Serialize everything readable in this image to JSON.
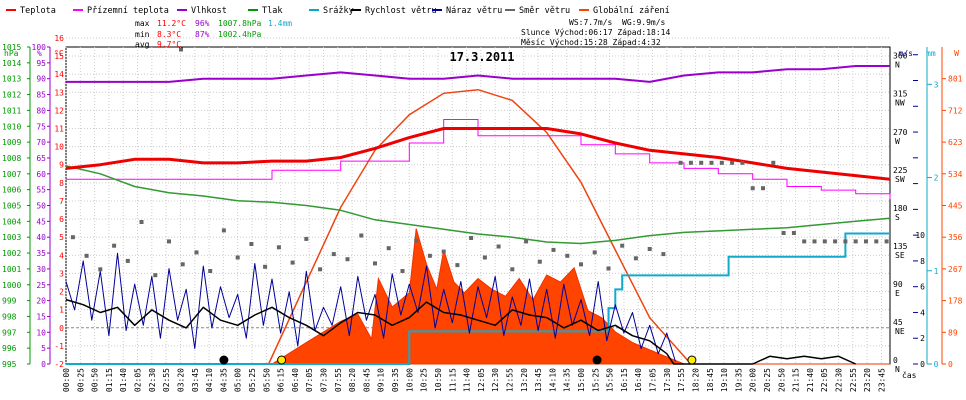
{
  "chart_data": {
    "type": "line",
    "title": "17.3.2011",
    "legend": [
      {
        "name": "Teplota",
        "color": "#ff0000"
      },
      {
        "name": "Přízemní teplota",
        "color": "#ff00ff"
      },
      {
        "name": "Vlhkost",
        "color": "#9900cc"
      },
      {
        "name": "Tlak",
        "color": "#009900"
      },
      {
        "name": "Srážky",
        "color": "#00aacc"
      },
      {
        "name": "Rychlost větru",
        "color": "#000000"
      },
      {
        "name": "Náraz větru",
        "color": "#000099"
      },
      {
        "name": "Směr větru",
        "color": "#666666"
      },
      {
        "name": "Globální záření",
        "color": "#ff4400"
      }
    ],
    "stats": {
      "max_label": "max",
      "max_temp": "11.2°C",
      "max_hum": "96%",
      "max_press": "1007.8hPa",
      "max_rain": "1.4mm",
      "min_label": "min",
      "min_temp": "8.3°C",
      "min_hum": "87%",
      "min_press": "1002.4hPa",
      "avg_label": "avg",
      "avg_temp": "9.7°C",
      "ws": "WS:7.7m/s",
      "wg": "WG:9.9m/s",
      "sun": "Slunce Východ:06:17   Západ:18:14",
      "moon": "Měsíc  Východ:15:28   Západ:4:32"
    },
    "axis_units": {
      "hpa": "hPa",
      "pct": "%",
      "degc": "°C",
      "ms": "m/s",
      "mm": "mm",
      "w": "W",
      "time": "čas"
    },
    "hpa_ticks": [
      995,
      996,
      997,
      998,
      999,
      1000,
      1001,
      1002,
      1003,
      1004,
      1005,
      1006,
      1007,
      1008,
      1009,
      1010,
      1011,
      1012,
      1013,
      1014,
      1015
    ],
    "pct_ticks": [
      0,
      5,
      10,
      15,
      20,
      25,
      30,
      35,
      40,
      45,
      50,
      55,
      60,
      65,
      70,
      75,
      80,
      85,
      90,
      95,
      100
    ],
    "temp_ticks": [
      -2,
      -1,
      0,
      1,
      2,
      3,
      4,
      5,
      6,
      7,
      8,
      9,
      10,
      11,
      12,
      13,
      14,
      15,
      16
    ],
    "dir_ticks": [
      {
        "v": 0,
        "deg": "0",
        "lbl": "N"
      },
      {
        "v": 45,
        "deg": "45",
        "lbl": "NE"
      },
      {
        "v": 90,
        "deg": "90",
        "lbl": "E"
      },
      {
        "v": 135,
        "deg": "135",
        "lbl": "SE"
      },
      {
        "v": 180,
        "deg": "180",
        "lbl": "S"
      },
      {
        "v": 225,
        "deg": "225",
        "lbl": "SW"
      },
      {
        "v": 270,
        "deg": "270",
        "lbl": "W"
      },
      {
        "v": 315,
        "deg": "315",
        "lbl": "NW"
      },
      {
        "v": 360,
        "deg": "360",
        "lbl": "N"
      }
    ],
    "ms_ticks": [
      0,
      2,
      4,
      6,
      8,
      10,
      12,
      14,
      16,
      18,
      20,
      22,
      24
    ],
    "ms_labels": [
      0,
      2,
      4,
      6,
      8,
      10
    ],
    "mm_ticks": [
      0,
      1,
      2,
      3
    ],
    "w_ticks": [
      0,
      89,
      178,
      267,
      356,
      445,
      534,
      623,
      712,
      801
    ],
    "x_labels": [
      "00:00",
      "00:25",
      "00:50",
      "01:15",
      "01:40",
      "02:05",
      "02:30",
      "02:55",
      "03:20",
      "03:45",
      "04:10",
      "04:35",
      "05:00",
      "05:25",
      "05:50",
      "06:15",
      "06:40",
      "07:05",
      "07:30",
      "07:55",
      "08:20",
      "08:45",
      "09:10",
      "09:35",
      "10:00",
      "10:25",
      "10:50",
      "11:15",
      "11:40",
      "12:05",
      "12:30",
      "12:55",
      "13:20",
      "13:45",
      "14:10",
      "14:35",
      "15:00",
      "15:25",
      "15:50",
      "16:15",
      "16:40",
      "17:05",
      "17:30",
      "17:55",
      "18:20",
      "18:45",
      "19:10",
      "19:35",
      "20:00",
      "20:25",
      "20:50",
      "21:15",
      "21:40",
      "22:05",
      "22:30",
      "22:55",
      "23:20",
      "23:45"
    ],
    "temperature": {
      "x_hours": [
        0,
        1,
        2,
        3,
        4,
        5,
        6,
        7,
        8,
        9,
        10,
        11,
        12,
        13,
        14,
        15,
        16,
        17,
        18,
        19,
        20,
        21,
        22,
        23,
        24
      ],
      "y": [
        8.8,
        9.0,
        9.3,
        9.3,
        9.1,
        9.1,
        9.2,
        9.2,
        9.4,
        9.9,
        10.5,
        11.0,
        11.0,
        11.0,
        11.0,
        10.7,
        10.2,
        9.8,
        9.6,
        9.4,
        9.1,
        8.8,
        8.6,
        8.4,
        8.2
      ]
    },
    "ground_temperature": {
      "x_hours": [
        0,
        1,
        2,
        3,
        4,
        5,
        6,
        7,
        8,
        9,
        10,
        11,
        12,
        13,
        14,
        15,
        16,
        17,
        18,
        19,
        20,
        21,
        22,
        23,
        24
      ],
      "y": [
        8.2,
        8.2,
        8.2,
        8.2,
        8.2,
        8.2,
        8.7,
        8.7,
        9.2,
        9.2,
        10.2,
        11.5,
        10.6,
        10.6,
        10.6,
        10.1,
        9.6,
        9.1,
        8.8,
        8.5,
        8.2,
        7.8,
        7.6,
        7.4,
        7.1
      ]
    },
    "humidity": {
      "x_hours": [
        0,
        1,
        2,
        3,
        4,
        5,
        6,
        7,
        8,
        9,
        10,
        11,
        12,
        13,
        14,
        15,
        16,
        17,
        18,
        19,
        20,
        21,
        22,
        23,
        24
      ],
      "y": [
        89,
        89,
        89,
        89,
        90,
        90,
        90,
        91,
        92,
        91,
        90,
        90,
        91,
        90,
        90,
        90,
        90,
        89,
        91,
        92,
        92,
        93,
        93,
        94,
        94
      ]
    },
    "pressure": {
      "x_hours": [
        0,
        1,
        2,
        3,
        4,
        5,
        6,
        7,
        8,
        9,
        10,
        11,
        12,
        13,
        14,
        15,
        16,
        17,
        18,
        19,
        20,
        21,
        22,
        23,
        24
      ],
      "y": [
        1007.5,
        1007.0,
        1006.2,
        1005.8,
        1005.6,
        1005.3,
        1005.2,
        1005.0,
        1004.7,
        1004.1,
        1003.8,
        1003.5,
        1003.2,
        1003.0,
        1002.7,
        1002.6,
        1002.8,
        1003.1,
        1003.3,
        1003.4,
        1003.5,
        1003.6,
        1003.8,
        1004.0,
        1004.2
      ]
    },
    "rain": {
      "x_hours": [
        0,
        8.5,
        9.8,
        10.0,
        15.6,
        15.8,
        16.0,
        16.2,
        19.1,
        19.3,
        22.5,
        22.7,
        24
      ],
      "y": [
        0,
        0,
        0,
        0.35,
        0.35,
        0.6,
        0.8,
        0.95,
        0.95,
        1.15,
        1.15,
        1.4,
        1.4
      ]
    },
    "wind_speed": {
      "x_hours": [
        0,
        0.5,
        1,
        1.5,
        2,
        2.5,
        3,
        3.5,
        4,
        4.5,
        5,
        5.5,
        6,
        6.5,
        7,
        7.5,
        8,
        8.5,
        9,
        9.5,
        10,
        10.5,
        11,
        11.5,
        12,
        12.5,
        13,
        13.5,
        14,
        14.5,
        15,
        15.5,
        16,
        16.5,
        17,
        17.5,
        17.7,
        20,
        20.5,
        21,
        21.5,
        22,
        22.5,
        23
      ],
      "y": [
        5.0,
        4.6,
        4.0,
        4.4,
        3.0,
        4.2,
        3.4,
        2.8,
        4.4,
        3.4,
        3.0,
        3.8,
        4.4,
        3.6,
        3.0,
        2.2,
        3.2,
        4.0,
        3.8,
        3.0,
        3.6,
        4.8,
        4.0,
        3.8,
        3.4,
        3.0,
        4.2,
        3.8,
        3.6,
        2.8,
        3.4,
        2.6,
        3.0,
        2.2,
        1.8,
        0.8,
        0.0,
        0.0,
        0.6,
        0.4,
        0.6,
        0.4,
        0.6,
        0.0
      ]
    },
    "wind_gust": {
      "x_hours": [
        0,
        0.25,
        0.5,
        0.75,
        1,
        1.25,
        1.5,
        1.75,
        2,
        2.25,
        2.5,
        2.75,
        3,
        3.25,
        3.5,
        3.75,
        4,
        4.25,
        4.5,
        4.75,
        5,
        5.25,
        5.5,
        5.75,
        6,
        6.25,
        6.5,
        6.75,
        7,
        7.25,
        7.5,
        7.75,
        8,
        8.25,
        8.5,
        8.75,
        9,
        9.25,
        9.5,
        9.75,
        10,
        10.25,
        10.5,
        10.75,
        11,
        11.25,
        11.5,
        11.75,
        12,
        12.25,
        12.5,
        12.75,
        13,
        13.25,
        13.5,
        13.75,
        14,
        14.25,
        14.5,
        14.75,
        15,
        15.25,
        15.5,
        15.75,
        16,
        16.25,
        16.5,
        16.75,
        17,
        17.25,
        17.5,
        17.75
      ],
      "y": [
        6.4,
        4.2,
        8.0,
        3.4,
        7.2,
        2.2,
        8.6,
        2.6,
        6.2,
        3.0,
        6.8,
        2.0,
        7.4,
        3.4,
        5.8,
        1.2,
        7.6,
        2.8,
        6.0,
        3.6,
        5.4,
        2.0,
        7.8,
        3.0,
        6.6,
        2.4,
        5.6,
        1.4,
        7.2,
        2.6,
        4.4,
        3.0,
        6.0,
        2.2,
        6.8,
        3.4,
        5.4,
        2.0,
        7.0,
        3.8,
        6.2,
        4.0,
        7.6,
        2.8,
        5.8,
        3.2,
        6.4,
        2.4,
        6.0,
        3.6,
        6.8,
        2.2,
        5.2,
        3.0,
        6.6,
        2.6,
        5.8,
        2.0,
        6.2,
        3.0,
        5.0,
        2.2,
        6.4,
        1.8,
        4.6,
        2.4,
        4.0,
        1.2,
        3.0,
        0.8,
        2.4,
        0.2
      ]
    },
    "wind_direction": {
      "x_hours": [
        3.35,
        0.2,
        0.6,
        1.0,
        1.4,
        1.8,
        2.2,
        2.6,
        3.0,
        3.4,
        3.8,
        4.2,
        4.6,
        5.0,
        5.4,
        5.8,
        6.2,
        6.6,
        7.0,
        7.4,
        7.8,
        8.2,
        8.6,
        9.0,
        9.4,
        9.8,
        10.2,
        10.6,
        11.0,
        11.4,
        11.8,
        12.2,
        12.6,
        13.0,
        13.4,
        13.8,
        14.2,
        14.6,
        15.0,
        15.4,
        15.8,
        16.2,
        16.6,
        17.0,
        17.4,
        17.9,
        18.2,
        18.5,
        18.8,
        19.1,
        19.4,
        19.7,
        20.0,
        20.3,
        20.6,
        20.9,
        21.2,
        21.5,
        21.8,
        22.1,
        22.4,
        22.7,
        23.0,
        23.3,
        23.6,
        23.9
      ],
      "y": [
        372,
        150,
        128,
        112,
        140,
        122,
        168,
        105,
        145,
        118,
        132,
        110,
        158,
        126,
        142,
        115,
        138,
        120,
        148,
        112,
        130,
        124,
        152,
        119,
        137,
        110,
        146,
        128,
        133,
        117,
        149,
        126,
        139,
        112,
        145,
        121,
        135,
        128,
        118,
        132,
        113,
        140,
        125,
        136,
        130,
        238,
        238,
        238,
        238,
        238,
        238,
        238,
        208,
        208,
        238,
        155,
        155,
        145,
        145,
        145,
        145,
        145,
        145,
        145,
        145,
        145
      ]
    },
    "solar_radiation": {
      "x_hours": [
        0,
        6.0,
        6.5,
        7.0,
        7.5,
        8.0,
        8.5,
        8.9,
        9.1,
        9.5,
        10.0,
        10.2,
        10.5,
        10.8,
        11.0,
        11.3,
        11.6,
        12.0,
        12.4,
        12.8,
        13.2,
        13.6,
        14.0,
        14.4,
        14.8,
        15.2,
        15.6,
        16.0,
        16.5,
        17.0,
        17.5,
        18.0,
        24
      ],
      "y": [
        0,
        0,
        30,
        60,
        90,
        120,
        140,
        70,
        240,
        160,
        200,
        380,
        280,
        210,
        320,
        230,
        200,
        240,
        210,
        190,
        240,
        180,
        250,
        230,
        270,
        150,
        130,
        90,
        60,
        40,
        20,
        0,
        0
      ]
    },
    "theoretical_radiation": {
      "x_hours": [
        5.9,
        7,
        8,
        9,
        10,
        11,
        12,
        13,
        14,
        15,
        16,
        17,
        18.2
      ],
      "y": [
        0,
        230,
        440,
        600,
        700,
        760,
        770,
        740,
        650,
        510,
        320,
        130,
        0
      ]
    },
    "markers": [
      {
        "x_hour": 4.6,
        "type": "moonset",
        "color": "#000000"
      },
      {
        "x_hour": 6.28,
        "type": "sunrise",
        "color": "#ffee00"
      },
      {
        "x_hour": 15.47,
        "type": "moonrise",
        "color": "#000000"
      },
      {
        "x_hour": 18.23,
        "type": "sunset",
        "color": "#ffee00"
      }
    ]
  }
}
